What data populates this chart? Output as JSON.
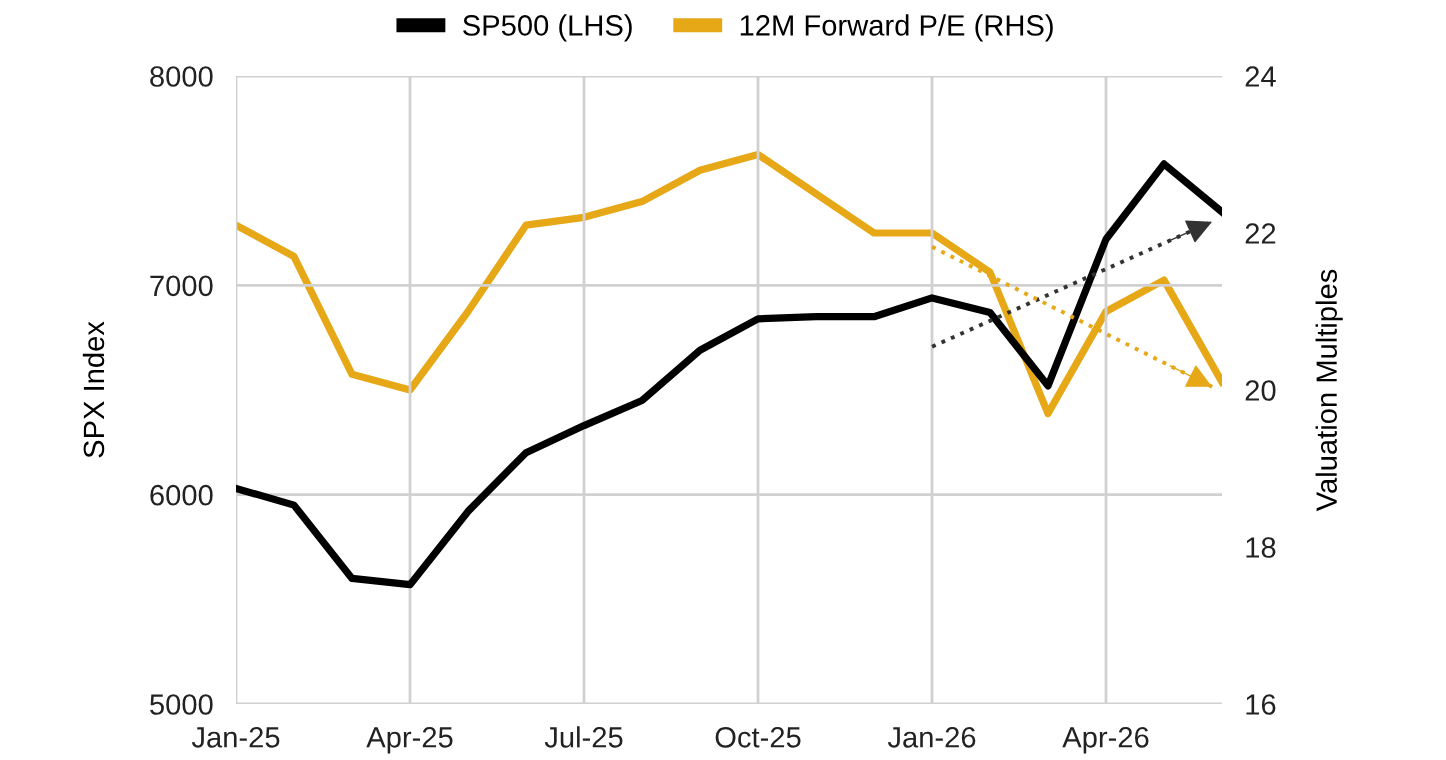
{
  "chart_data": {
    "type": "line",
    "x": [
      "2025-01",
      "2025-02",
      "2025-03",
      "2025-04",
      "2025-05",
      "2025-06",
      "2025-07",
      "2025-08",
      "2025-09",
      "2025-10",
      "2025-11",
      "2025-12",
      "2026-01",
      "2026-02",
      "2026-03",
      "2026-04",
      "2026-05",
      "2026-06"
    ],
    "series": [
      {
        "name": "SP500 (LHS)",
        "color": "#000000",
        "values": [
          6030,
          5950,
          5600,
          5570,
          5920,
          6200,
          6330,
          6450,
          6690,
          6840,
          6850,
          6850,
          6940,
          6870,
          6520,
          7220,
          7580,
          7350
        ]
      },
      {
        "name": "12M Forward P/E (RHS)",
        "color": "#e6a817",
        "axis": "y2",
        "values": [
          22.1,
          21.7,
          20.2,
          20.0,
          21.0,
          22.1,
          22.2,
          22.4,
          22.8,
          23.0,
          22.5,
          22.0,
          22.0,
          21.5,
          19.7,
          21.0,
          21.4,
          20.1
        ]
      }
    ],
    "xlim": [
      "2025-01",
      "2026-06"
    ],
    "xticks": [
      {
        "value": "2025-01",
        "label": "Jan-25"
      },
      {
        "value": "2025-04",
        "label": "Apr-25"
      },
      {
        "value": "2025-07",
        "label": "Jul-25"
      },
      {
        "value": "2025-10",
        "label": "Oct-25"
      },
      {
        "value": "2026-01",
        "label": "Jan-26"
      },
      {
        "value": "2026-04",
        "label": "Apr-26"
      }
    ],
    "ylim": [
      5000,
      8000
    ],
    "yticks": [
      5000,
      6000,
      7000,
      8000
    ],
    "y2lim": [
      16,
      24
    ],
    "y2ticks": [
      16,
      18,
      20,
      22,
      24
    ],
    "ylabel": "SPX Index",
    "y2label": "Valuation Multiples",
    "grid": true,
    "legend": "top",
    "line_style": "solid",
    "marker": "none"
  }
}
